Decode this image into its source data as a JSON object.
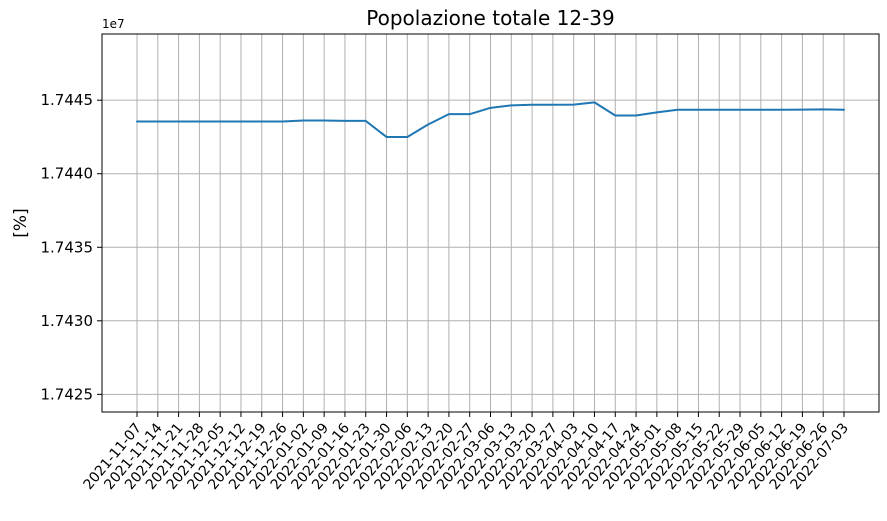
{
  "chart_data": {
    "type": "line",
    "title": "Popolazione totale 12-39",
    "xlabel": "",
    "ylabel": "[%]",
    "y_offset_label": "1e7",
    "y_multiplier": 10000000,
    "ylim": [
      17423800,
      17449500
    ],
    "yticks": [
      1.7425,
      1.743,
      1.7435,
      1.744,
      1.7445
    ],
    "ytick_labels": [
      "1.7425",
      "1.7430",
      "1.7435",
      "1.7440",
      "1.7445"
    ],
    "grid": true,
    "legend": "none",
    "colors": {
      "line": "#1f77b4",
      "grid": "#b0b0b0",
      "axis": "#000000",
      "background": "#ffffff"
    },
    "categories": [
      "2021-11-07",
      "2021-11-14",
      "2021-11-21",
      "2021-11-28",
      "2021-12-05",
      "2021-12-12",
      "2021-12-19",
      "2021-12-26",
      "2022-01-02",
      "2022-01-09",
      "2022-01-16",
      "2022-01-23",
      "2022-01-30",
      "2022-02-06",
      "2022-02-13",
      "2022-02-20",
      "2022-02-27",
      "2022-03-06",
      "2022-03-13",
      "2022-03-20",
      "2022-03-27",
      "2022-04-03",
      "2022-04-10",
      "2022-04-17",
      "2022-04-24",
      "2022-05-01",
      "2022-05-08",
      "2022-05-15",
      "2022-05-22",
      "2022-05-29",
      "2022-06-05",
      "2022-06-12",
      "2022-06-19",
      "2022-06-26",
      "2022-07-03"
    ],
    "series": [
      {
        "values": [
          17443550,
          17443550,
          17443550,
          17443550,
          17443550,
          17443550,
          17443550,
          17443550,
          17443620,
          17443620,
          17443590,
          17443590,
          17442500,
          17442500,
          17443350,
          17444050,
          17444050,
          17444480,
          17444650,
          17444690,
          17444690,
          17444700,
          17444850,
          17443960,
          17443960,
          17444170,
          17444350,
          17444350,
          17444350,
          17444350,
          17444352,
          17444354,
          17444357,
          17444376,
          17444350
        ]
      }
    ]
  }
}
